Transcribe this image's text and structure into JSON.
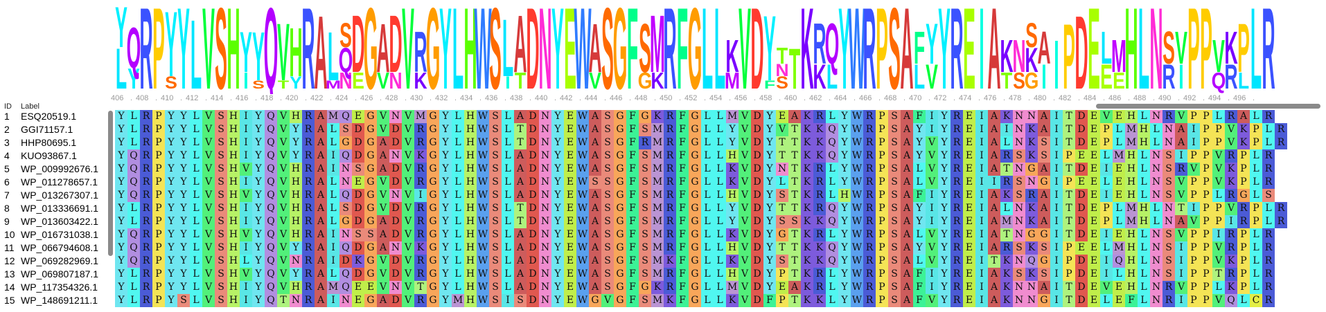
{
  "header": {
    "id_label": "ID",
    "label_label": "Label"
  },
  "ruler": {
    "ticks": [
      "406",
      "408",
      "410",
      "412",
      "414",
      "416",
      "418",
      "420",
      "422",
      "424",
      "426",
      "428",
      "430",
      "432",
      "434",
      "436",
      "438",
      "440",
      "442",
      "444",
      "446",
      "448",
      "450",
      "452",
      "454",
      "456",
      "458",
      "460",
      "462",
      "464",
      "466",
      "468",
      "470",
      "472",
      "474",
      "476",
      "478",
      "480",
      "482",
      "484",
      "486",
      "488",
      "490",
      "492",
      "494",
      "496"
    ]
  },
  "logo": {
    "columns": [
      [
        [
          "L",
          0.5
        ],
        [
          "Y",
          0.5
        ]
      ],
      [
        [
          "Q",
          0.5
        ],
        [
          "Y",
          0.25
        ]
      ],
      [
        [
          "R",
          1
        ]
      ],
      [
        [
          "P",
          1
        ]
      ],
      [
        [
          "Y",
          0.8
        ],
        [
          "S",
          0.15
        ]
      ],
      [
        [
          "Y",
          1
        ]
      ],
      [
        [
          "L",
          0.85
        ]
      ],
      [
        [
          "V",
          1
        ]
      ],
      [
        [
          "S",
          1
        ]
      ],
      [
        [
          "H",
          1
        ]
      ],
      [
        [
          "Y",
          0.5
        ],
        [
          "I",
          0.2
        ]
      ],
      [
        [
          "Y",
          0.6
        ],
        [
          "S",
          0.1
        ]
      ],
      [
        [
          "Q",
          1
        ]
      ],
      [
        [
          "V",
          0.7
        ],
        [
          "T",
          0.1
        ]
      ],
      [
        [
          "H",
          0.6
        ],
        [
          "Y",
          0.15
        ]
      ],
      [
        [
          "R",
          1
        ]
      ],
      [
        [
          "A",
          0.9
        ]
      ],
      [
        [
          "L",
          0.6
        ],
        [
          "M",
          0.1
        ]
      ],
      [
        [
          "Q",
          0.3
        ],
        [
          "S",
          0.3
        ],
        [
          "N",
          0.2
        ]
      ],
      [
        [
          "D",
          0.7
        ],
        [
          "E",
          0.2
        ]
      ],
      [
        [
          "G",
          1
        ]
      ],
      [
        [
          "A",
          0.6
        ],
        [
          "V",
          0.2
        ]
      ],
      [
        [
          "D",
          0.7
        ],
        [
          "N",
          0.2
        ]
      ],
      [
        [
          "V",
          1
        ]
      ],
      [
        [
          "R",
          0.5
        ],
        [
          "K",
          0.2
        ]
      ],
      [
        [
          "G",
          1
        ]
      ],
      [
        [
          "Y",
          1
        ]
      ],
      [
        [
          "L",
          1
        ]
      ],
      [
        [
          "H",
          1
        ]
      ],
      [
        [
          "W",
          1
        ]
      ],
      [
        [
          "S",
          1
        ]
      ],
      [
        [
          "L",
          0.7
        ],
        [
          "I",
          0.15
        ]
      ],
      [
        [
          "A",
          0.7
        ],
        [
          "T",
          0.2
        ]
      ],
      [
        [
          "D",
          1
        ]
      ],
      [
        [
          "N",
          1
        ]
      ],
      [
        [
          "Y",
          1
        ]
      ],
      [
        [
          "E",
          1
        ]
      ],
      [
        [
          "W",
          1
        ]
      ],
      [
        [
          "A",
          0.6
        ],
        [
          "V",
          0.2
        ]
      ],
      [
        [
          "S",
          1
        ]
      ],
      [
        [
          "G",
          1
        ]
      ],
      [
        [
          "F",
          1
        ]
      ],
      [
        [
          "S",
          0.6
        ],
        [
          "G",
          0.2
        ]
      ],
      [
        [
          "M",
          0.7
        ],
        [
          "K",
          0.2
        ]
      ],
      [
        [
          "R",
          1
        ]
      ],
      [
        [
          "F",
          1
        ]
      ],
      [
        [
          "G",
          1
        ]
      ],
      [
        [
          "L",
          1
        ]
      ],
      [
        [
          "L",
          1
        ]
      ],
      [
        [
          "K",
          0.4
        ],
        [
          "M",
          0.2
        ]
      ],
      [
        [
          "V",
          1
        ]
      ],
      [
        [
          "D",
          1
        ]
      ],
      [
        [
          "Y",
          0.8
        ],
        [
          "F",
          0.1
        ]
      ],
      [
        [
          "T",
          0.2
        ],
        [
          "S",
          0.15
        ],
        [
          "N",
          0.15
        ]
      ],
      [
        [
          "T",
          0.5
        ]
      ],
      [
        [
          "K",
          1
        ]
      ],
      [
        [
          "R",
          0.5
        ],
        [
          "K",
          0.3
        ]
      ],
      [
        [
          "Q",
          0.5
        ],
        [
          "L",
          0.3
        ]
      ],
      [
        [
          "Y",
          1
        ]
      ],
      [
        [
          "W",
          1
        ]
      ],
      [
        [
          "R",
          1
        ]
      ],
      [
        [
          "P",
          1
        ]
      ],
      [
        [
          "S",
          1
        ]
      ],
      [
        [
          "A",
          1
        ]
      ],
      [
        [
          "F",
          0.4
        ],
        [
          "L",
          0.3
        ]
      ],
      [
        [
          "Y",
          0.5
        ],
        [
          "V",
          0.3
        ]
      ],
      [
        [
          "Y",
          1
        ]
      ],
      [
        [
          "R",
          1
        ]
      ],
      [
        [
          "E",
          1
        ]
      ],
      [
        [
          "I",
          1
        ]
      ],
      [
        [
          "A",
          1
        ]
      ],
      [
        [
          "K",
          0.4
        ],
        [
          "T",
          0.2
        ]
      ],
      [
        [
          "N",
          0.4
        ],
        [
          "S",
          0.2
        ]
      ],
      [
        [
          "K",
          0.3
        ],
        [
          "S",
          0.3
        ],
        [
          "G",
          0.2
        ]
      ],
      [
        [
          "A",
          0.4
        ],
        [
          "I",
          0.3
        ]
      ],
      [
        [
          "I",
          0.6
        ]
      ],
      [
        [
          "P",
          0.8
        ]
      ],
      [
        [
          "D",
          0.9
        ]
      ],
      [
        [
          "E",
          1
        ]
      ],
      [
        [
          "L",
          0.4
        ],
        [
          "E",
          0.3
        ]
      ],
      [
        [
          "M",
          0.4
        ],
        [
          "E",
          0.2
        ]
      ],
      [
        [
          "H",
          1
        ]
      ],
      [
        [
          "L",
          1
        ]
      ],
      [
        [
          "N",
          1
        ]
      ],
      [
        [
          "S",
          0.4
        ],
        [
          "R",
          0.3
        ]
      ],
      [
        [
          "V",
          0.4
        ],
        [
          "I",
          0.3
        ]
      ],
      [
        [
          "P",
          1
        ]
      ],
      [
        [
          "P",
          1
        ]
      ],
      [
        [
          "V",
          0.4
        ],
        [
          "Q",
          0.2
        ]
      ],
      [
        [
          "K",
          0.4
        ],
        [
          "R",
          0.3
        ]
      ],
      [
        [
          "P",
          0.6
        ],
        [
          "L",
          0.2
        ]
      ],
      [
        [
          "L",
          1
        ]
      ],
      [
        [
          "R",
          1
        ]
      ]
    ]
  },
  "rows": [
    {
      "id": "1",
      "label": "ESQ20519.1",
      "seq": "YLRPYYLVSHIYQVHRAMQEGVNVMGYLHWSLADNYEWASGFGKRFGLLMVDYEAKRLYWRPSAFIYREIAKNNAITDEVEHLNRVPPLRALR"
    },
    {
      "id": "2",
      "label": "GGI71157.1",
      "seq": "YLRPYYLVSHIYQVYRALSDGVDVRGYLHWSLTDNYEWASGFSMRFGLLYVDYVTKKQYWRPSAYIYREIAINKAITDEPLMHLNAIPPVKPLR"
    },
    {
      "id": "3",
      "label": "HHP80695.1",
      "seq": "YLRPYYLVSHIYQVYRALGDGADVRGYLHWSLTDNYEWASGFRMRFGLLYVDYTTKKQYWRPSAYVYREIALNKSITDEPLMHLNAIPPVKPLR"
    },
    {
      "id": "4",
      "label": "KUO93867.1",
      "seq": "YQRPYYLVSHIYQVYRAIQDGANVKGYLHWSLADNYEWASGFSMRFGLLHVDYTTKKQYWRPSAYVYREIARSKSIPEELMHLNSIPPVRPLR"
    },
    {
      "id": "5",
      "label": "WP_009992676.1",
      "seq": "YQRPYYLVSHVYQVHRAINSGADVRGYLHWSLADNYEWASGFSMRFGLLKVDYNTKRLYWRPSALVYREIATNGAITDEIEHLNSRVPVKPLR"
    },
    {
      "id": "6",
      "label": "WP_011278657.1",
      "seq": "YQRPYYLVSHIYQVHRALNEGVDVRGYLHWSLADNYEWSSGFSMRFGLLKVDYLTKRLYWRPSALVYREIIRSNGIPEELEHLNSVPPVKPLR"
    },
    {
      "id": "7",
      "label": "WP_013267307.1",
      "seq": "YQRPYYLVSHVYQVHRALQDGVNVIGYLHWSLADNYEWASGFSMRFGLLHVDYSTKRLHWRPSAFIYREIAKSRAITDEIEHLNSVPPLRGLS"
    },
    {
      "id": "8",
      "label": "WP_013336691.1",
      "seq": "YLRPYYLVSHIYQVHRALSDGVDVRGYLHWSLTDNYEWASGFSMRFGLLYVDYTTKRQYWRPSAYIYREIALNKAITDEPLMHLNTIPPVRPLR"
    },
    {
      "id": "9",
      "label": "WP_013603422.1",
      "seq": "YLRPYYLVSHIYQVHRALGDGADVRGYLHWSLTDNYEWASGFSMRFGLLYVDYSSKKQYWRPSAYIYREIAMNKAITDEPLMHLNAVPPIRPLR"
    },
    {
      "id": "10",
      "label": "WP_016731038.1",
      "seq": "YQRPYYLVSHVYQVHRAINSSADVRGYLHWSLADNYEWASGFSMRFGLLKVDYGTKRLYWRPSALVYREIATNGGITDEIEHLNSVPPIRPLR"
    },
    {
      "id": "11",
      "label": "WP_066794608.1",
      "seq": "YQRPYYLVSHIYQVYRAIQDGANVKGYLHWSLADNYEWASGFSMRFGLLHVDYTTKKQYWRPSAYVYREIARSKSIPEELMHLNSIPPVRPLR"
    },
    {
      "id": "12",
      "label": "WP_069282969.1",
      "seq": "YQRPYYLVSHLYQVNRAIDKGVDVRGYLHWSLADNYEWASGFSMKFGLLKVDYSTKKQYWRPSALVYREITKNQGIPDEIQHLNSIPPVKPLR"
    },
    {
      "id": "13",
      "label": "WP_069807187.1",
      "seq": "YLRPYYLVSHVYQVYRALQDGVDVRGYLHWSLADNYEWASGFSMRFGLLHVDYPTKRLYWRPSAFIYREIAKSKSIPDEILHLNSIPPTRPLR"
    },
    {
      "id": "14",
      "label": "WP_117354326.1",
      "seq": "YLRPYYLVSHIYQVHRAMQEEVNVTGYLHWSLADNYEWASGFGKRFGLLMVDYEAKRLYWRPSAFIYREIAKNNAITDEVEHLNRVPPLKPLR"
    },
    {
      "id": "15",
      "label": "WP_148691211.1",
      "seq": "YLRPYSLVSHIYQTNRAINEGADVRGYMHWSISDNYEWGVGFSMKFGLLKVDFPTKKLYWRPSAFVYREIAKNNGITDELEFLNRIPPVQLCR"
    }
  ],
  "residue_colors": {
    "A": "#cd5c5c",
    "R": "#4b5bd6",
    "N": "#f08ccf",
    "D": "#e0584f",
    "C": "#e4ee44",
    "Q": "#b18ee0",
    "E": "#c0ee4a",
    "G": "#f8a65a",
    "H": "#b7f266",
    "I": "#59e6e6",
    "L": "#50f7f0",
    "K": "#7d5bdc",
    "M": "#ba94d3",
    "F": "#3cf296",
    "P": "#f4e456",
    "S": "#ea8a7a",
    "T": "#aef27e",
    "W": "#5aa0ee",
    "Y": "#6fe6f0",
    "V": "#52f07a"
  },
  "logo_colors": {
    "A": "#d63a3a",
    "R": "#3b52ff",
    "N": "#ff2bd6",
    "D": "#ff3b2f",
    "C": "#e1f000",
    "Q": "#b300ff",
    "E": "#a8ff00",
    "G": "#ff9c00",
    "H": "#5bff00",
    "I": "#00ffe0",
    "L": "#00e5ff",
    "K": "#7a00ff",
    "M": "#c000ff",
    "F": "#00ff8a",
    "P": "#ffcc00",
    "S": "#ff6a00",
    "T": "#7fff00",
    "W": "#2f7bff",
    "Y": "#00f0ff",
    "V": "#00ff3a"
  }
}
